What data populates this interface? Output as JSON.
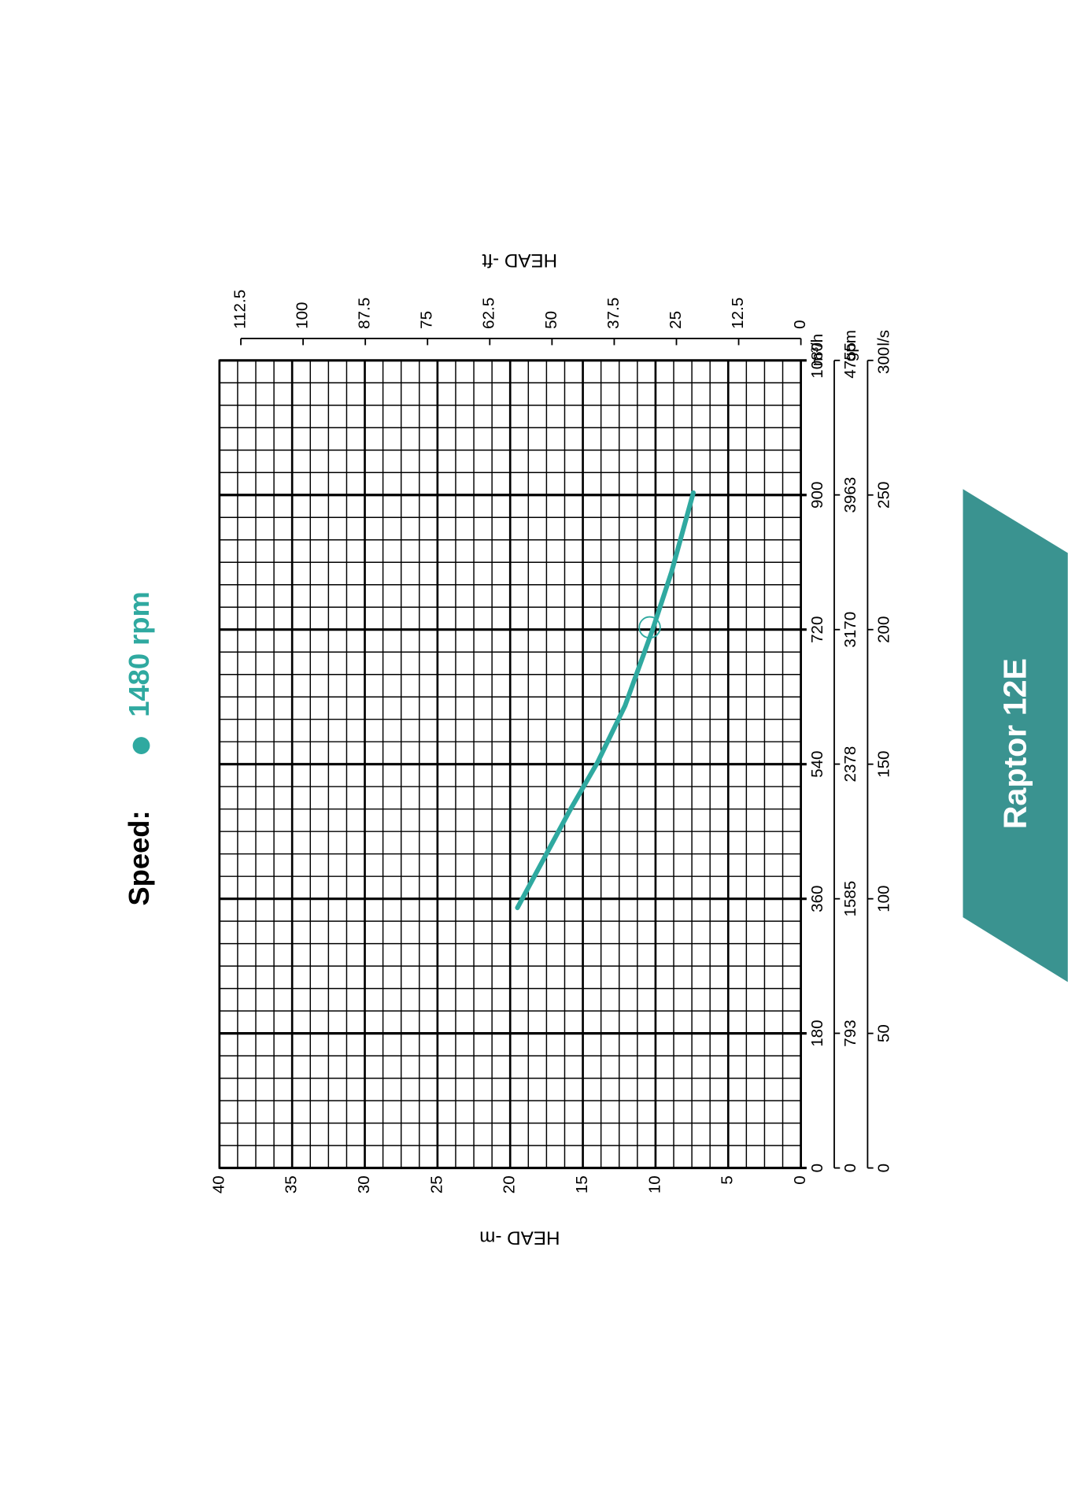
{
  "product_name": "Raptor 12E",
  "chart_data": {
    "type": "line",
    "legend_title": "Speed:",
    "x_unit": "m³/h",
    "xlim": [
      0,
      1080
    ],
    "xticks": [
      0,
      180,
      360,
      540,
      720,
      900,
      1080
    ],
    "gpm_axis": {
      "unit": "gpm",
      "lim": [
        0,
        4755
      ],
      "ticks": [
        0,
        793,
        1585,
        2378,
        3170,
        3963,
        4755
      ]
    },
    "ls_axis": {
      "unit": "l/s",
      "lim": [
        0,
        300
      ],
      "ticks": [
        0,
        50,
        100,
        150,
        200,
        250,
        300
      ]
    },
    "ylabel": "HEAD -m",
    "ylim": [
      0,
      40
    ],
    "yticks": [
      0,
      5,
      10,
      15,
      20,
      25,
      30,
      35,
      40
    ],
    "y2label": "HEAD -ft",
    "y2lim": [
      0,
      116.8
    ],
    "y2ticks": [
      0,
      12.5,
      25,
      37.5,
      50,
      62.5,
      75,
      87.5,
      100,
      112.5
    ],
    "grid": true,
    "x": [
      348,
      478,
      542,
      618,
      720,
      797,
      903
    ],
    "series": [
      {
        "name": "1480 rpm",
        "color": "#2fa9a0",
        "values": [
          19.5,
          15.9,
          14.0,
          12.1,
          10.2,
          8.9,
          7.4
        ]
      }
    ],
    "duty_point": {
      "x": 723,
      "y": 10.4
    }
  }
}
